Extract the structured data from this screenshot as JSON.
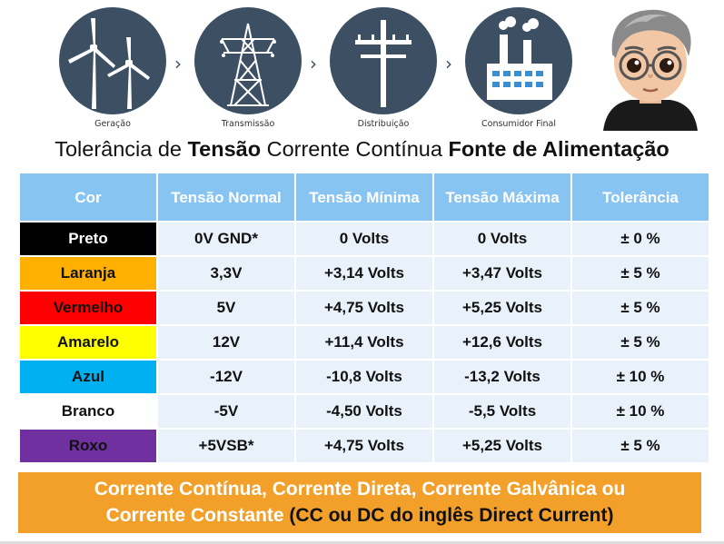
{
  "flow": {
    "stages": [
      {
        "label": "Geração",
        "icon": "wind-turbine-icon"
      },
      {
        "label": "Transmissão",
        "icon": "transmission-tower-icon"
      },
      {
        "label": "Distribuição",
        "icon": "utility-pole-icon"
      },
      {
        "label": "Consumidor Final",
        "icon": "factory-icon"
      }
    ],
    "separator": "›"
  },
  "title": {
    "part1": "Tolerância de ",
    "part2": "Tensão",
    "part3": " Corrente Contínua ",
    "part4": "Fonte de Alimentação"
  },
  "table": {
    "headers": [
      "Cor",
      "Tensão Normal",
      "Tensão Mínima",
      "Tensão Máxima",
      "Tolerância"
    ],
    "rows": [
      {
        "cor": "Preto",
        "bg": "#000000",
        "fg": "#ffffff",
        "normal": "0V GND*",
        "min": "0 Volts",
        "max": "0 Volts",
        "tol": "± 0 %"
      },
      {
        "cor": "Laranja",
        "bg": "#ffb000",
        "fg": "#111111",
        "normal": "3,3V",
        "min": "+3,14 Volts",
        "max": "+3,47 Volts",
        "tol": "± 5 %"
      },
      {
        "cor": "Vermelho",
        "bg": "#ff0000",
        "fg": "#111111",
        "normal": "5V",
        "min": "+4,75 Volts",
        "max": "+5,25 Volts",
        "tol": "± 5 %"
      },
      {
        "cor": "Amarelo",
        "bg": "#ffff00",
        "fg": "#111111",
        "normal": "12V",
        "min": "+11,4 Volts",
        "max": "+12,6 Volts",
        "tol": "± 5 %"
      },
      {
        "cor": "Azul",
        "bg": "#00b0f0",
        "fg": "#111111",
        "normal": "-12V",
        "min": "-10,8 Volts",
        "max": "-13,2 Volts",
        "tol": "± 10 %"
      },
      {
        "cor": "Branco",
        "bg": "#ffffff",
        "fg": "#111111",
        "normal": "-5V",
        "min": "-4,50 Volts",
        "max": "-5,5 Volts",
        "tol": "± 10 %"
      },
      {
        "cor": "Roxo",
        "bg": "#7030a0",
        "fg": "#111111",
        "normal": "+5VSB*",
        "min": "+4,75 Volts",
        "max": "+5,25 Volts",
        "tol": "± 5 %"
      }
    ]
  },
  "footer": {
    "line1": "Corrente Contínua, Corrente Direta, Corrente Galvânica ou",
    "line2_white": "Corrente Constante ",
    "line2_dark": "(CC ou DC do inglês Direct Current)"
  },
  "colors": {
    "circle": "#3c4f63",
    "header": "#88c4f2",
    "cell": "#e9f1fb",
    "footer": "#f2a02a"
  }
}
